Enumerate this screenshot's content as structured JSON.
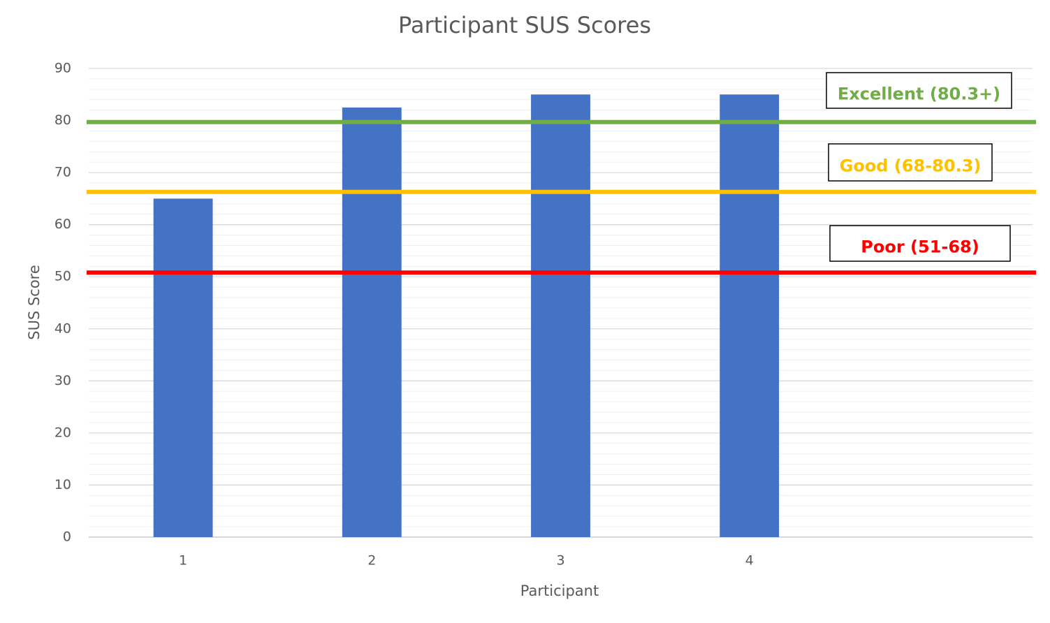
{
  "chart_data": {
    "type": "bar",
    "title": "Participant SUS Scores",
    "x_label": "Participant",
    "y_label": "SUS Score",
    "categories": [
      "1",
      "2",
      "3",
      "4",
      null
    ],
    "values": [
      65,
      82.5,
      85,
      85,
      null
    ],
    "color": "#4472c4",
    "ylim": [
      0,
      90
    ],
    "yticks": [
      0,
      10,
      20,
      30,
      40,
      50,
      60,
      70,
      80,
      90
    ],
    "grid": true,
    "minor_grid": true,
    "reference_lines": [
      {
        "label": "Excellent (80.3+)",
        "value": 79.7,
        "color": "#70ad47"
      },
      {
        "label": "Good (68-80.3)",
        "value": 66.3,
        "color": "#ffc000"
      },
      {
        "label": "Poor (51-68)",
        "value": 50.8,
        "color": "#ff0000"
      }
    ]
  }
}
